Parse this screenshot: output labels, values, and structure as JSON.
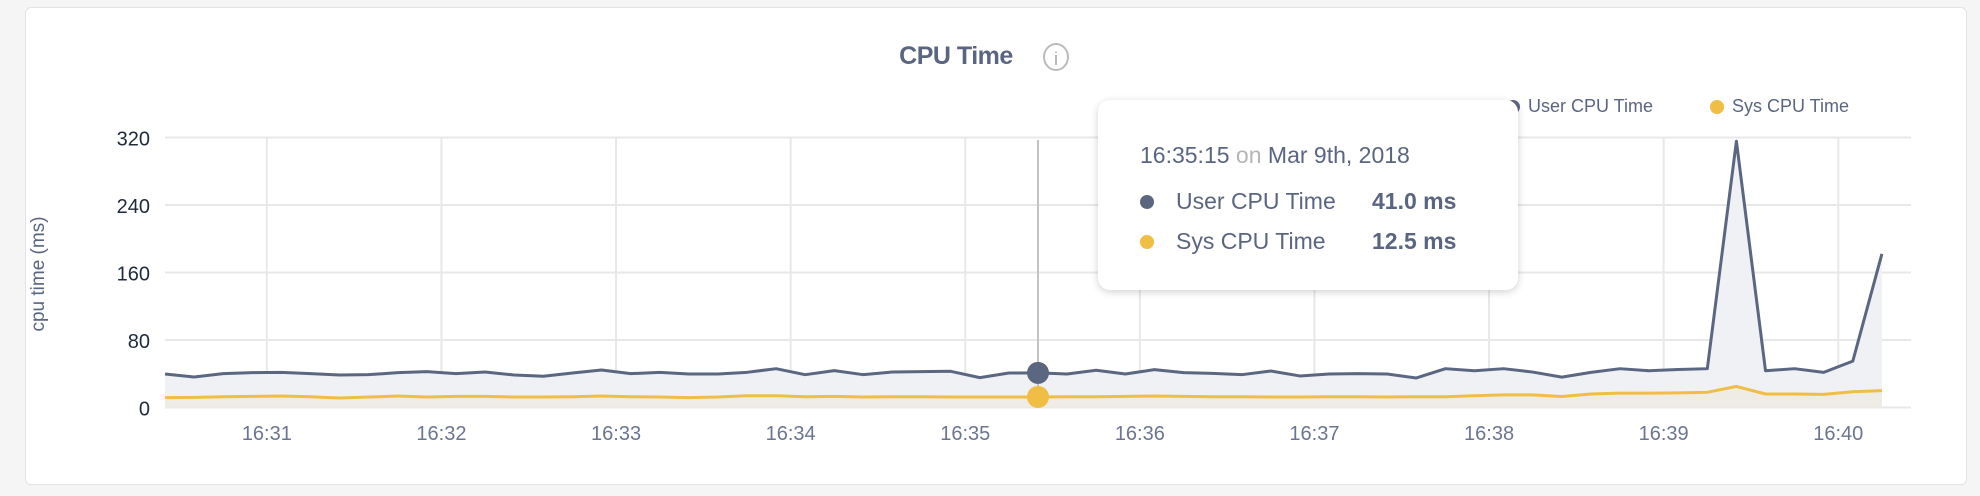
{
  "header": {
    "title": "CPU Time",
    "info_icon": "info-circle-icon"
  },
  "legend": [
    {
      "label": "User CPU Time",
      "color": "#5b6680"
    },
    {
      "label": "Sys CPU Time",
      "color": "#f0bd45"
    }
  ],
  "tooltip": {
    "time": "16:35:15",
    "on": "on",
    "date": "Mar 9th, 2018",
    "rows": [
      {
        "label": "User CPU Time",
        "value": "41.0 ms",
        "color": "#5b6680"
      },
      {
        "label": "Sys CPU Time",
        "value": "12.5 ms",
        "color": "#f0bd45"
      }
    ]
  },
  "chart_data": {
    "type": "area",
    "title": "CPU Time",
    "ylabel": "cpu time (ms)",
    "xlabel": "",
    "ylim": [
      0,
      320
    ],
    "yticks": [
      0,
      80,
      160,
      240,
      320
    ],
    "xticks": [
      "16:31",
      "16:32",
      "16:33",
      "16:34",
      "16:35",
      "16:36",
      "16:37",
      "16:38",
      "16:39",
      "16:40"
    ],
    "x_start": "16:30:25",
    "x_interval_seconds": 10,
    "grid": true,
    "legend_position": "top-right",
    "hover_index": 30,
    "series": [
      {
        "name": "User CPU Time",
        "color": "#5b6680",
        "values": [
          39.7,
          36.2,
          40.1,
          41.3,
          41.7,
          40.1,
          38.5,
          38.9,
          41.3,
          42.5,
          40.1,
          42.1,
          38.5,
          37.0,
          40.9,
          44.5,
          40.1,
          41.7,
          39.7,
          39.7,
          41.7,
          46.0,
          38.9,
          43.7,
          38.9,
          42.1,
          42.5,
          42.9,
          35.4,
          40.9,
          41.0,
          39.7,
          44.1,
          39.7,
          44.9,
          41.3,
          40.5,
          38.9,
          43.3,
          37.4,
          39.7,
          40.1,
          39.7,
          35.0,
          46.0,
          43.6,
          46.0,
          42.0,
          36.0,
          41.6,
          46.0,
          43.6,
          45.0,
          46.0,
          315.6,
          43.6,
          46.0,
          41.6,
          55.0,
          182.0
        ]
      },
      {
        "name": "Sys CPU Time",
        "color": "#f0bd45",
        "values": [
          11.7,
          12.0,
          12.8,
          13.2,
          13.6,
          12.8,
          11.3,
          12.4,
          13.6,
          12.4,
          13.2,
          13.2,
          12.4,
          12.4,
          12.8,
          13.6,
          12.8,
          12.4,
          11.7,
          12.4,
          14.0,
          14.0,
          12.8,
          13.2,
          12.4,
          12.8,
          12.8,
          12.4,
          12.4,
          12.4,
          12.5,
          12.8,
          12.8,
          13.2,
          13.6,
          13.2,
          12.8,
          12.8,
          12.4,
          12.4,
          12.8,
          12.8,
          12.4,
          12.8,
          12.7,
          14.0,
          15.0,
          15.0,
          13.0,
          16.0,
          17.0,
          17.0,
          17.4,
          18.0,
          25.0,
          16.0,
          16.0,
          15.5,
          18.6,
          20.0
        ]
      }
    ]
  }
}
